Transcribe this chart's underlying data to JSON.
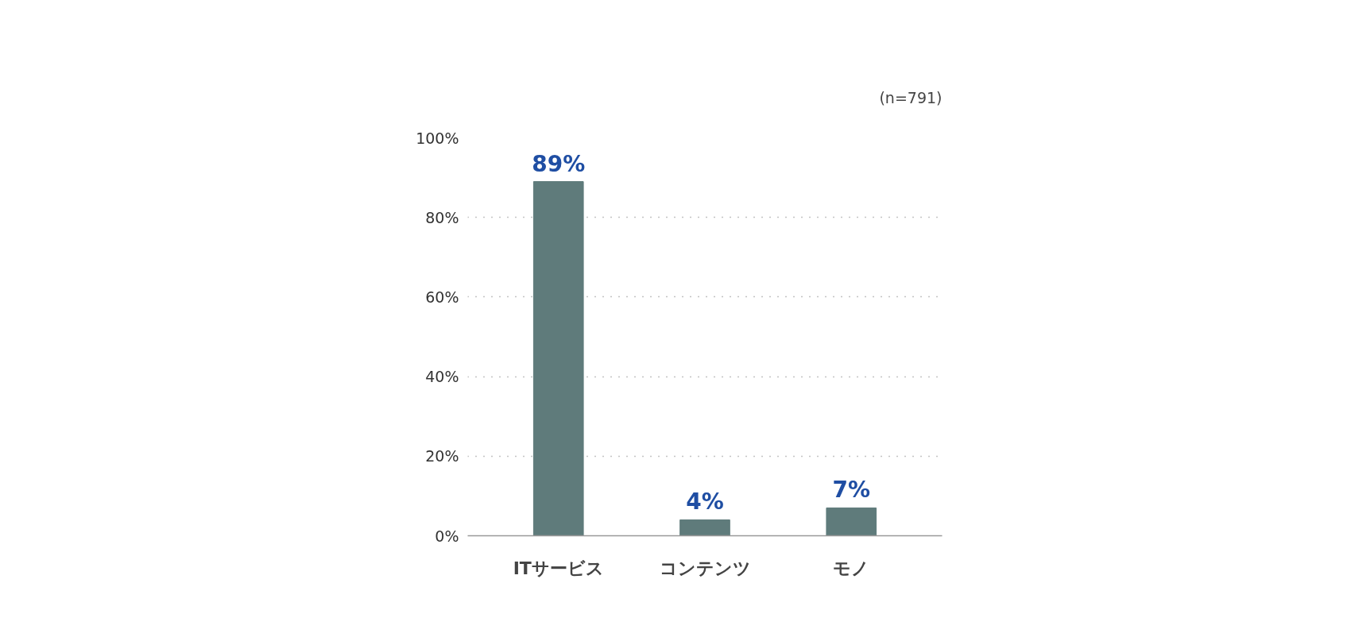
{
  "chart_data": {
    "type": "bar",
    "categories": [
      "ITサービス",
      "コンテンツ",
      "モノ"
    ],
    "values": [
      89,
      4,
      7
    ],
    "value_labels": [
      "89%",
      "4%",
      "7%"
    ],
    "color": "#5f7b7b",
    "ylim": [
      0,
      100
    ],
    "yticks": [
      {
        "value": 0,
        "label": "0%"
      },
      {
        "value": 20,
        "label": "20%"
      },
      {
        "value": 40,
        "label": "40%"
      },
      {
        "value": 60,
        "label": "60%"
      },
      {
        "value": 80,
        "label": "80%"
      },
      {
        "value": 100,
        "label": "100%"
      }
    ],
    "grid": "y",
    "annotations": [
      "(n=791)"
    ]
  }
}
